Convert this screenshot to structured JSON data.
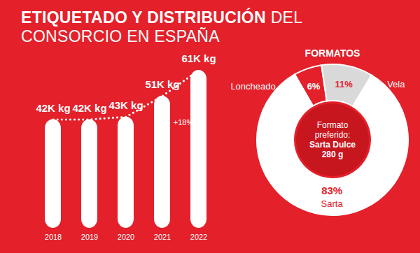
{
  "chart_data": [
    {
      "type": "bar",
      "title": "ETIQUETADO Y DISTRIBUCIÓN DEL CONSORCIO EN ESPAÑA",
      "categories": [
        "2018",
        "2019",
        "2020",
        "2021",
        "2022"
      ],
      "values": [
        42,
        42,
        43,
        51,
        61
      ],
      "value_labels": [
        "42K kg",
        "42K kg",
        "43K kg",
        "51K kg",
        "61K kg"
      ],
      "data_labels": true,
      "color": "#ffffff",
      "ylim": [
        0,
        61
      ],
      "tick_labels": "x",
      "line_style": "dotted",
      "annotations": [
        "+18%"
      ]
    },
    {
      "type": "pie",
      "title": "FORMATOS",
      "categories": [
        "Loncheado",
        "Vela",
        "Sarta"
      ],
      "values": [
        6,
        11,
        83
      ],
      "value_labels": [
        "6%",
        "11%",
        "83%"
      ],
      "colors": [
        "#e4202a",
        "#d9d9d9",
        "#ffffff"
      ],
      "data_labels": true,
      "center_text": [
        "Formato",
        "preferido:",
        "Sarta Dulce",
        "280 g"
      ]
    }
  ]
}
